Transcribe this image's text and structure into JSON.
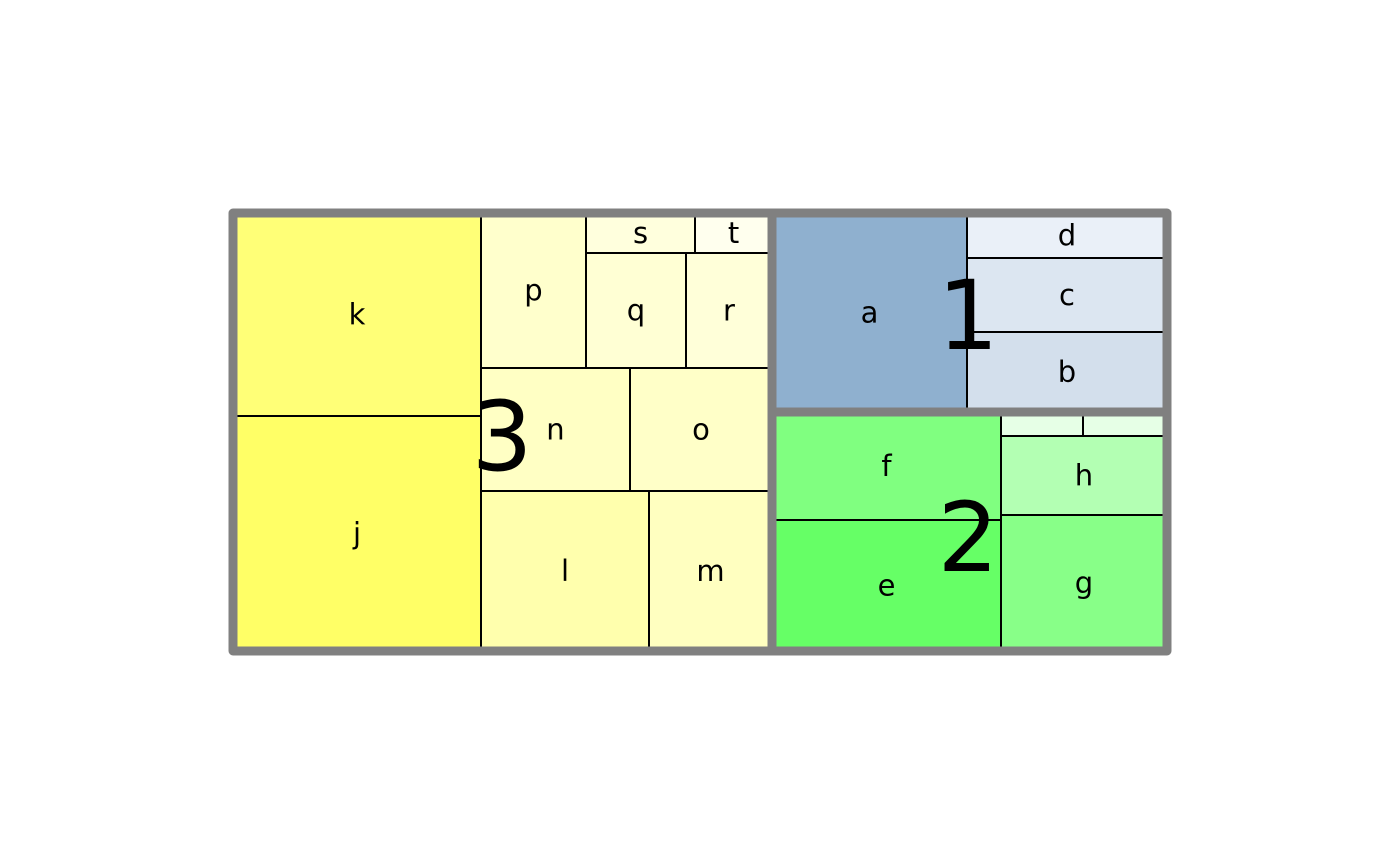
{
  "chart_data": {
    "type": "treemap",
    "groups": [
      {
        "label": "3",
        "leaves": [
          {
            "label": "k",
            "color": "#FFFF77"
          },
          {
            "label": "j",
            "color": "#FFFF66"
          },
          {
            "label": "p",
            "color": "#FFFFCC"
          },
          {
            "label": "s",
            "color": "#FFFFDD"
          },
          {
            "label": "t",
            "color": "#FFFFEE"
          },
          {
            "label": "q",
            "color": "#FFFFD4"
          },
          {
            "label": "r",
            "color": "#FFFFD9"
          },
          {
            "label": "n",
            "color": "#FFFFC4"
          },
          {
            "label": "o",
            "color": "#FFFFC8"
          },
          {
            "label": "l",
            "color": "#FFFFAD"
          },
          {
            "label": "m",
            "color": "#FFFFC0"
          }
        ]
      },
      {
        "label": "1",
        "leaves": [
          {
            "label": "a",
            "color": "#8FB0CF"
          },
          {
            "label": "d",
            "color": "#EAF0F8"
          },
          {
            "label": "c",
            "color": "#DCE6F1"
          },
          {
            "label": "b",
            "color": "#D3DFEC"
          }
        ]
      },
      {
        "label": "2",
        "leaves": [
          {
            "label": "f",
            "color": "#80FF80"
          },
          {
            "label": "e",
            "color": "#66FF66"
          },
          {
            "label": "",
            "color": "#E6FFE6"
          },
          {
            "label": "",
            "color": "#E6FFE6"
          },
          {
            "label": "h",
            "color": "#B3FFB3"
          },
          {
            "label": "g",
            "color": "#88FF88"
          }
        ]
      }
    ],
    "border_color": "#808080"
  }
}
